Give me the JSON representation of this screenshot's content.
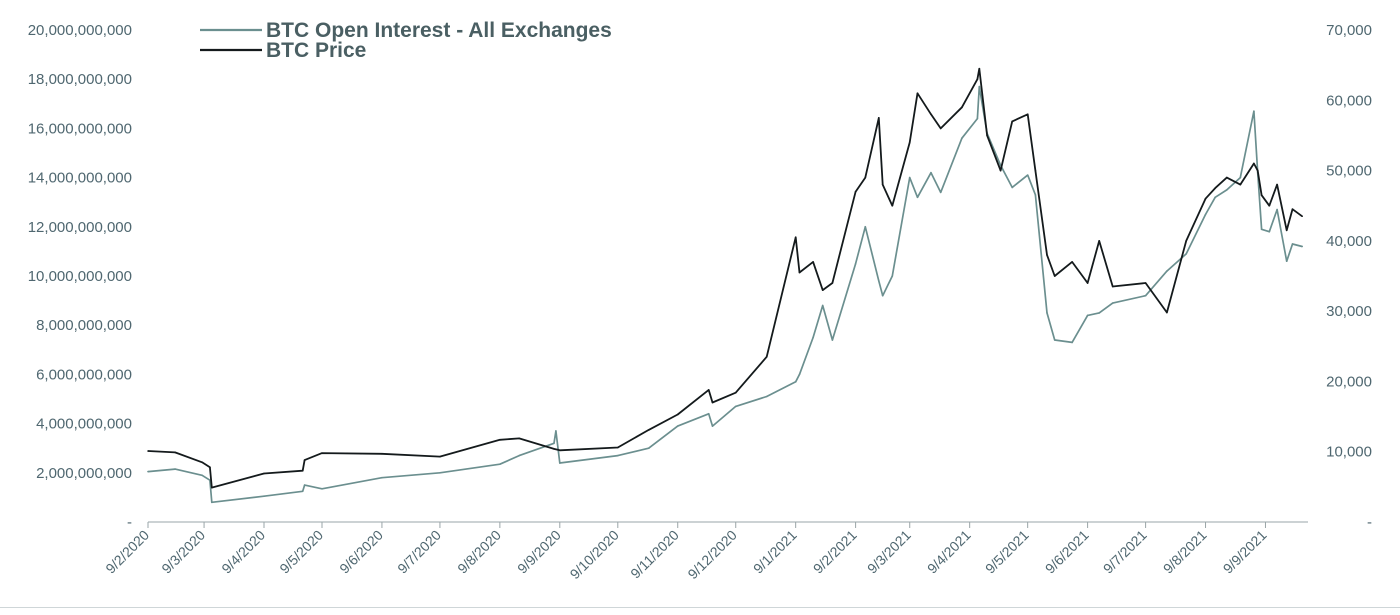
{
  "chart_data": {
    "type": "line",
    "title": "",
    "colors": {
      "open_interest": "#6b8f8f",
      "price": "#141a1c",
      "tick_text": "#4f6770",
      "axis": "#9aa5a8"
    },
    "legend": {
      "placement": "top-left",
      "entries": [
        "BTC Open Interest - All Exchanges",
        "BTC Price"
      ]
    },
    "y_left": {
      "range": [
        0,
        20000000000
      ],
      "ticks": [
        0,
        2000000000,
        4000000000,
        6000000000,
        8000000000,
        10000000000,
        12000000000,
        14000000000,
        16000000000,
        18000000000,
        20000000000
      ],
      "tick_labels": [
        "-",
        "2,000,000,000",
        "4,000,000,000",
        "6,000,000,000",
        "8,000,000,000",
        "10,000,000,000",
        "12,000,000,000",
        "14,000,000,000",
        "16,000,000,000",
        "18,000,000,000",
        "20,000,000,000"
      ]
    },
    "y_right": {
      "range": [
        0,
        70000
      ],
      "ticks": [
        0,
        10000,
        20000,
        30000,
        40000,
        50000,
        60000,
        70000
      ],
      "tick_labels": [
        "-",
        "10,000",
        "20,000",
        "30,000",
        "40,000",
        "50,000",
        "60,000",
        "70,000"
      ]
    },
    "x_axis": {
      "type": "date",
      "range": [
        "2020-02-09",
        "2021-10-01"
      ],
      "ticks": [
        "2020-02-09",
        "2020-03-09",
        "2020-04-09",
        "2020-05-09",
        "2020-06-09",
        "2020-07-09",
        "2020-08-09",
        "2020-09-09",
        "2020-10-09",
        "2020-11-09",
        "2020-12-09",
        "2021-01-09",
        "2021-02-09",
        "2021-03-09",
        "2021-04-09",
        "2021-05-09",
        "2021-06-09",
        "2021-07-09",
        "2021-08-09",
        "2021-09-09"
      ],
      "tick_labels": [
        "9/2/2020",
        "9/3/2020",
        "9/4/2020",
        "9/5/2020",
        "9/6/2020",
        "9/7/2020",
        "9/8/2020",
        "9/9/2020",
        "9/10/2020",
        "9/11/2020",
        "9/12/2020",
        "9/1/2021",
        "9/2/2021",
        "9/3/2021",
        "9/4/2021",
        "9/5/2021",
        "9/6/2021",
        "9/7/2021",
        "9/8/2021",
        "9/9/2021"
      ]
    },
    "series": [
      {
        "name": "BTC Open Interest - All Exchanges",
        "axis": "left",
        "x": [
          "2020-02-09",
          "2020-02-23",
          "2020-03-08",
          "2020-03-12",
          "2020-03-13",
          "2020-04-09",
          "2020-04-29",
          "2020-04-30",
          "2020-05-09",
          "2020-06-09",
          "2020-07-09",
          "2020-08-09",
          "2020-08-19",
          "2020-09-06",
          "2020-09-07",
          "2020-09-09",
          "2020-10-09",
          "2020-10-25",
          "2020-11-09",
          "2020-11-25",
          "2020-11-27",
          "2020-12-09",
          "2020-12-25",
          "2021-01-09",
          "2021-01-11",
          "2021-01-18",
          "2021-01-23",
          "2021-01-28",
          "2021-02-09",
          "2021-02-14",
          "2021-02-21",
          "2021-02-23",
          "2021-02-28",
          "2021-03-09",
          "2021-03-13",
          "2021-03-20",
          "2021-03-25",
          "2021-04-05",
          "2021-04-13",
          "2021-04-14",
          "2021-04-18",
          "2021-04-25",
          "2021-05-01",
          "2021-05-09",
          "2021-05-13",
          "2021-05-19",
          "2021-05-23",
          "2021-06-01",
          "2021-06-09",
          "2021-06-15",
          "2021-06-22",
          "2021-07-09",
          "2021-07-20",
          "2021-07-30",
          "2021-08-09",
          "2021-08-14",
          "2021-08-20",
          "2021-08-27",
          "2021-09-03",
          "2021-09-05",
          "2021-09-07",
          "2021-09-11",
          "2021-09-15",
          "2021-09-20",
          "2021-09-23",
          "2021-09-28"
        ],
        "values": [
          2050000000,
          2150000000,
          1900000000,
          1700000000,
          800000000,
          1050000000,
          1250000000,
          1500000000,
          1350000000,
          1800000000,
          2000000000,
          2350000000,
          2700000000,
          3200000000,
          3700000000,
          2400000000,
          2700000000,
          3000000000,
          3900000000,
          4400000000,
          3900000000,
          4700000000,
          5100000000,
          5700000000,
          6000000000,
          7500000000,
          8800000000,
          7400000000,
          10500000000,
          12000000000,
          9800000000,
          9200000000,
          10000000000,
          14000000000,
          13200000000,
          14200000000,
          13400000000,
          15600000000,
          16400000000,
          17700000000,
          15800000000,
          14500000000,
          13600000000,
          14100000000,
          13300000000,
          8500000000,
          7400000000,
          7300000000,
          8400000000,
          8500000000,
          8900000000,
          9200000000,
          10200000000,
          10900000000,
          12500000000,
          13200000000,
          13500000000,
          14000000000,
          16700000000,
          14200000000,
          11900000000,
          11800000000,
          12700000000,
          10600000000,
          11300000000,
          11200000000
        ]
      },
      {
        "name": "BTC Price",
        "axis": "right",
        "x": [
          "2020-02-09",
          "2020-02-23",
          "2020-03-08",
          "2020-03-12",
          "2020-03-13",
          "2020-04-09",
          "2020-04-29",
          "2020-04-30",
          "2020-05-09",
          "2020-06-09",
          "2020-07-09",
          "2020-08-09",
          "2020-08-19",
          "2020-09-06",
          "2020-09-09",
          "2020-10-09",
          "2020-10-25",
          "2020-11-09",
          "2020-11-25",
          "2020-11-27",
          "2020-12-09",
          "2020-12-25",
          "2021-01-09",
          "2021-01-11",
          "2021-01-18",
          "2021-01-23",
          "2021-01-28",
          "2021-02-09",
          "2021-02-14",
          "2021-02-21",
          "2021-02-23",
          "2021-02-28",
          "2021-03-09",
          "2021-03-13",
          "2021-03-20",
          "2021-03-25",
          "2021-04-05",
          "2021-04-13",
          "2021-04-14",
          "2021-04-18",
          "2021-04-25",
          "2021-05-01",
          "2021-05-09",
          "2021-05-13",
          "2021-05-19",
          "2021-05-23",
          "2021-06-01",
          "2021-06-09",
          "2021-06-15",
          "2021-06-22",
          "2021-07-09",
          "2021-07-20",
          "2021-07-30",
          "2021-08-09",
          "2021-08-14",
          "2021-08-20",
          "2021-08-27",
          "2021-09-03",
          "2021-09-05",
          "2021-09-07",
          "2021-09-11",
          "2021-09-15",
          "2021-09-20",
          "2021-09-23",
          "2021-09-28"
        ],
        "values": [
          10100,
          9900,
          8500,
          7800,
          4900,
          6900,
          7300,
          8800,
          9800,
          9700,
          9300,
          11700,
          11900,
          10400,
          10200,
          10600,
          13100,
          15300,
          18800,
          17000,
          18400,
          23500,
          40500,
          35500,
          37000,
          33000,
          34000,
          47000,
          49000,
          57500,
          48000,
          45000,
          54000,
          61000,
          58000,
          56000,
          59000,
          63000,
          64500,
          55000,
          50000,
          57000,
          58000,
          50000,
          38000,
          35000,
          37000,
          34000,
          40000,
          33500,
          34000,
          29800,
          40000,
          46000,
          47500,
          49000,
          48000,
          51000,
          50000,
          46500,
          45000,
          48000,
          41500,
          44500,
          43500
        ]
      }
    ]
  }
}
